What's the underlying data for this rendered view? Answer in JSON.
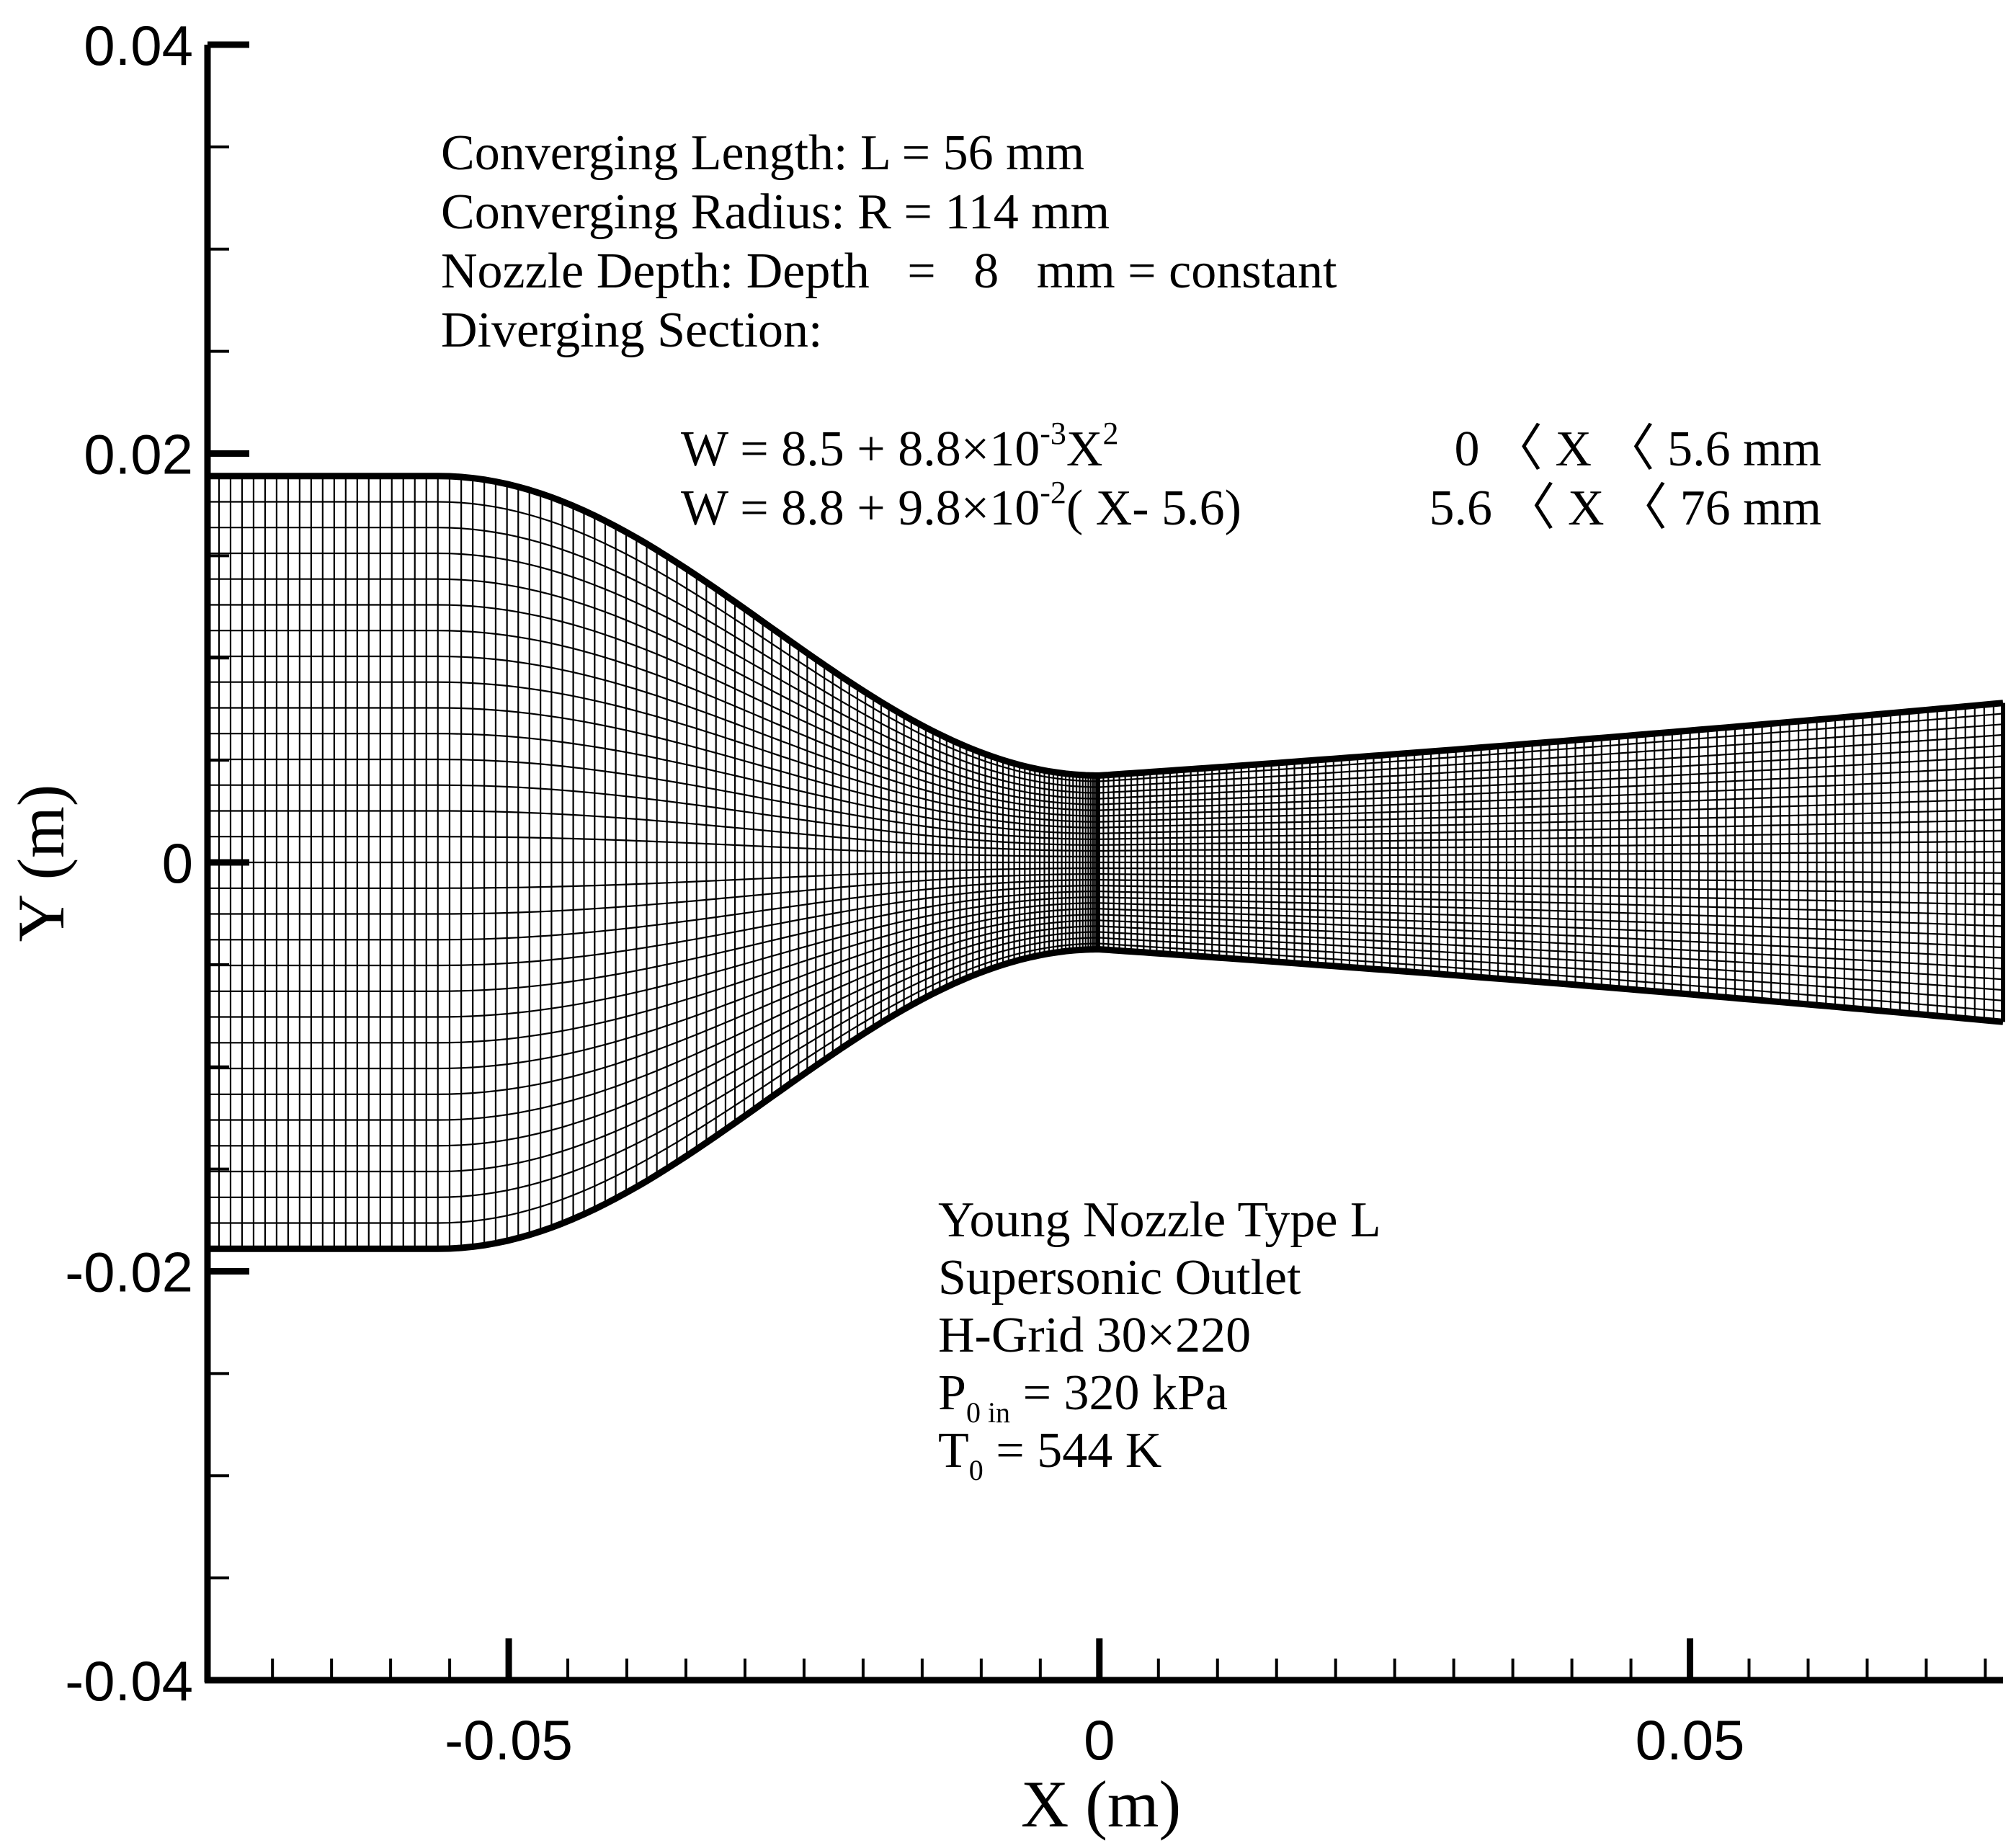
{
  "chart_data": {
    "type": "mesh",
    "xlabel": "X (m)",
    "ylabel": "Y (m)",
    "xlim": [
      -0.0755,
      0.0765
    ],
    "ylim": [
      -0.04,
      0.04
    ],
    "x_major_ticks": [
      -0.05,
      0,
      0.05
    ],
    "x_tick_labels": [
      "-0.05",
      "0",
      "0.05"
    ],
    "x_minor_step": 0.01,
    "y_major_ticks": [
      0.04,
      0.02,
      0,
      -0.02,
      -0.04
    ],
    "y_tick_labels": [
      "0.04",
      "0.02",
      "0",
      "-0.02",
      "-0.04"
    ],
    "y_minor_step": 0.005,
    "grid": "H-Grid 30×220",
    "grid_rows": 30,
    "grid_cols": 220,
    "nozzle": {
      "inlet_x_start": -0.0755,
      "converging_start_x": -0.056,
      "throat_x": 0,
      "outlet_x": 0.0765,
      "inlet_half_width": 0.0189,
      "throat_half_width": 0.00425,
      "outlet_half_width": 0.0078
    },
    "annotations_top": {
      "line1": "Converging Length: L =  56  mm",
      "line2": "Converging Radius: R = 114 mm",
      "line3": "Nozzle Depth: Depth   =   8   mm = constant",
      "line4": "Diverging Section:",
      "eq1_main": "W = 8.5 + 8.8×10",
      "eq1_exp": "-3",
      "eq1_var": "X",
      "eq1_var_exp": "2",
      "eq1_range": "0 〈 X 〈 5.6 mm",
      "eq2_main": "W = 8.8 + 9.8×10",
      "eq2_exp": "-2",
      "eq2_tail": "( X- 5.6)",
      "eq2_range": "5.6 〈 X 〈 76  mm"
    },
    "annotations_bottom": {
      "line1": "Young Nozzle Type L",
      "line2": "Supersonic Outlet",
      "line3": "H-Grid 30×220",
      "p_symbol": "P",
      "p_sub": "0 in",
      "p_value": " = 320 kPa",
      "t_symbol": "T",
      "t_sub": "0",
      "t_value": " = 544 K"
    }
  }
}
